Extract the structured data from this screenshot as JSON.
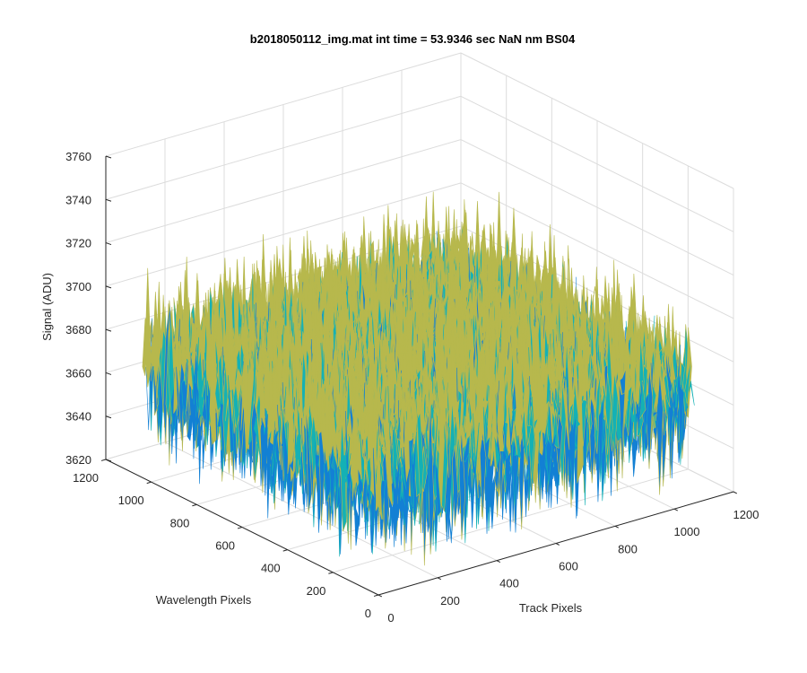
{
  "chart_data": {
    "type": "surface",
    "title": "b2018050112_img.mat int time = 53.9346 sec   NaN nm BS04",
    "xlabel": "Track Pixels",
    "ylabel": "Wavelength Pixels",
    "zlabel": "Signal (ADU)",
    "xlim": [
      0,
      1200
    ],
    "ylim": [
      0,
      1200
    ],
    "zlim": [
      3620,
      3760
    ],
    "x_ticks": [
      "0",
      "200",
      "400",
      "600",
      "800",
      "1000",
      "1200"
    ],
    "y_ticks": [
      "0",
      "200",
      "400",
      "600",
      "800",
      "1000",
      "1200"
    ],
    "z_ticks": [
      "3620",
      "3640",
      "3660",
      "3680",
      "3700",
      "3720",
      "3740",
      "3760"
    ],
    "grid": true,
    "colormap": "parula",
    "surface_extent": {
      "x": [
        0,
        1056
      ],
      "y": [
        0,
        1027
      ]
    },
    "surface_level": {
      "mean": 3672,
      "min": 3625,
      "max": 3735
    },
    "colors": {
      "low": "#1380d4",
      "mid": "#14b1b5",
      "high": "#b7b84d"
    }
  }
}
